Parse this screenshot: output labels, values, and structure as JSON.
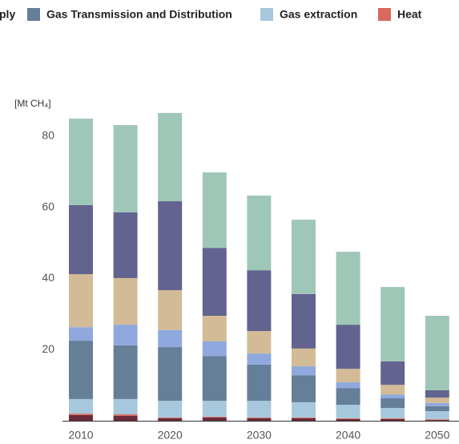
{
  "chart_data": {
    "type": "stacked_bar",
    "legend_fragment": "ply",
    "y_axis_label": "[Mt CH₄]",
    "categories": [
      "2010",
      null,
      "2020",
      null,
      "2030",
      null,
      "2040",
      null,
      "2050"
    ],
    "series": [
      {
        "color": "#6b2c3a",
        "values": [
          1.6,
          1.4,
          0.7,
          0.9,
          0.7,
          0.7,
          0.5,
          0.5,
          0.2
        ]
      },
      {
        "name": "Heat",
        "color": "#d9695f",
        "values": [
          0.4,
          0.4,
          0.2,
          0.2,
          0.2,
          0.2,
          0.2,
          0.2,
          0.2
        ]
      },
      {
        "name": "Gas extraction",
        "color": "#a7c8dc",
        "values": [
          4.1,
          4.3,
          4.7,
          4.5,
          4.7,
          4.3,
          3.8,
          2.9,
          2.3
        ]
      },
      {
        "name": "Gas Transmission and Distribution",
        "color": "#667f99",
        "values": [
          16.4,
          15.1,
          15.1,
          12.6,
          10.2,
          7.6,
          4.7,
          2.7,
          1.4
        ]
      },
      {
        "color": "#8fa8de",
        "values": [
          3.8,
          5.8,
          4.8,
          4.1,
          3.1,
          2.5,
          1.6,
          1.1,
          0.9
        ]
      },
      {
        "color": "#d2bb96",
        "values": [
          14.9,
          13.1,
          11.2,
          7.2,
          6.3,
          5.0,
          3.8,
          2.7,
          1.5
        ]
      },
      {
        "color": "#62638e",
        "values": [
          19.4,
          18.5,
          25.0,
          19.1,
          17.1,
          15.3,
          12.4,
          6.6,
          2.1
        ]
      },
      {
        "color": "#9fc7b8",
        "values": [
          24.3,
          24.5,
          24.8,
          21.2,
          21.0,
          20.9,
          20.5,
          20.9,
          20.9
        ]
      }
    ],
    "ylim": [
      0,
      88
    ],
    "yticks": [
      20,
      40,
      60,
      80
    ],
    "grid": false
  }
}
